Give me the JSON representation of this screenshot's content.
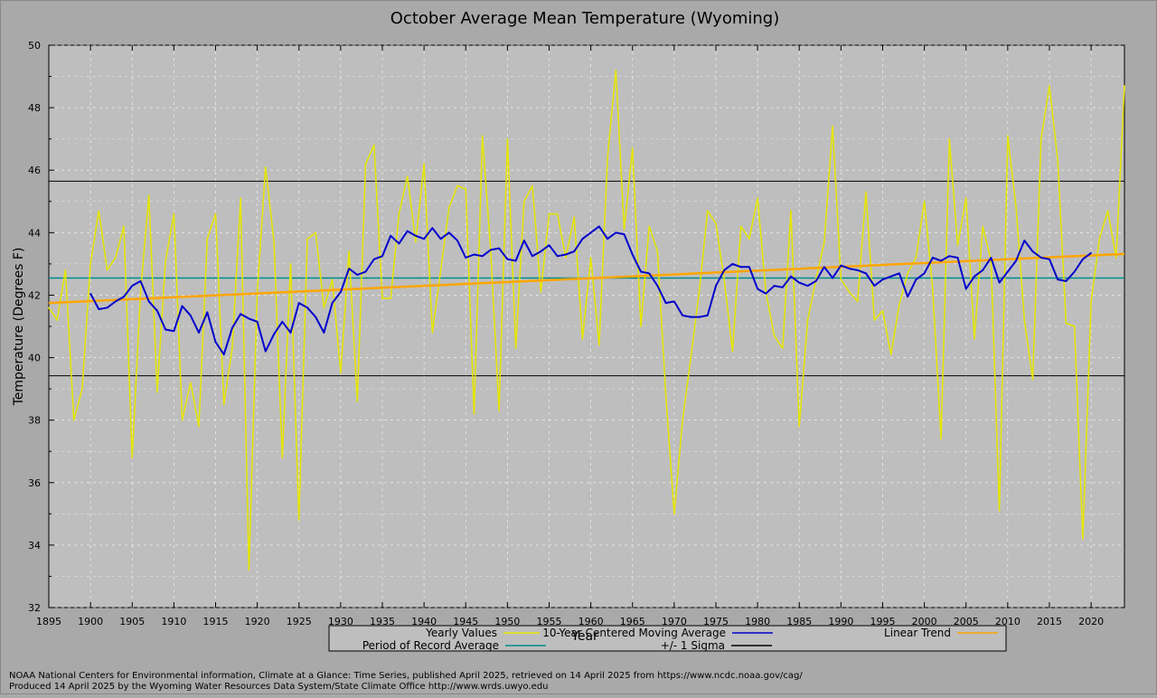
{
  "chart_data": {
    "type": "line",
    "title": "October Average Mean Temperature (Wyoming)",
    "xlabel": "Year",
    "ylabel": "Temperature (Degrees F)",
    "xlim": [
      1895,
      2024
    ],
    "ylim": [
      32,
      50
    ],
    "x_ticks": [
      1895,
      1900,
      1905,
      1910,
      1915,
      1920,
      1925,
      1930,
      1935,
      1940,
      1945,
      1950,
      1955,
      1960,
      1965,
      1970,
      1975,
      1980,
      1985,
      1990,
      1995,
      2000,
      2005,
      2010,
      2015,
      2020
    ],
    "y_ticks": [
      32,
      34,
      36,
      38,
      40,
      42,
      44,
      46,
      48,
      50
    ],
    "grid": true,
    "legend_position": "bottom",
    "legend": [
      {
        "label": "Yearly Values",
        "color": "#e6e600"
      },
      {
        "label": "10-Year Centered Moving Average",
        "color": "#0000cc"
      },
      {
        "label": "Linear Trend",
        "color": "#ffa500"
      },
      {
        "label": "Period of Record Average",
        "color": "#008b8b"
      },
      {
        "label": "+/- 1 Sigma",
        "color": "#000000"
      }
    ],
    "series": [
      {
        "name": "Yearly Values",
        "color": "#e6e600",
        "x_start": 1895,
        "values": [
          41.6,
          41.2,
          42.8,
          38.0,
          39.0,
          43.0,
          44.7,
          42.8,
          43.2,
          44.2,
          36.8,
          42.1,
          45.2,
          38.9,
          43.1,
          44.6,
          38.0,
          39.2,
          37.8,
          43.8,
          44.6,
          38.5,
          40.3,
          45.1,
          33.2,
          42.1,
          46.1,
          43.7,
          36.8,
          43.0,
          34.8,
          43.8,
          44.0,
          41.6,
          42.5,
          39.5,
          43.4,
          38.6,
          46.2,
          46.8,
          41.9,
          41.9,
          44.6,
          45.8,
          43.7,
          46.2,
          40.8,
          42.8,
          44.8,
          45.5,
          45.4,
          38.2,
          47.1,
          43.4,
          38.3,
          47.0,
          40.3,
          45.0,
          45.5,
          42.1,
          44.6,
          44.6,
          43.2,
          44.5,
          40.6,
          43.2,
          40.4,
          46.4,
          49.2,
          44.1,
          46.7,
          41.0,
          44.2,
          43.4,
          38.8,
          35.0,
          38.0,
          40.0,
          42.1,
          44.7,
          44.3,
          42.5,
          40.2,
          44.2,
          43.8,
          45.1,
          42.1,
          40.7,
          40.3,
          44.7,
          37.8,
          41.2,
          42.5,
          43.7,
          47.4,
          42.5,
          42.1,
          41.8,
          45.3,
          41.2,
          41.5,
          40.1,
          41.7,
          42.7,
          43.2,
          45.0,
          42.2,
          37.4,
          47.0,
          43.6,
          45.1,
          40.6,
          44.2,
          43.1,
          35.1,
          47.1,
          44.8,
          41.2,
          39.3,
          47.0,
          48.7,
          46.3,
          41.1,
          41.0,
          34.2,
          41.8,
          43.8,
          44.7,
          43.2,
          48.7
        ]
      },
      {
        "name": "10-Year Centered Moving Average",
        "color": "#0000cc",
        "x_start": 1900,
        "values": [
          42.05,
          41.55,
          41.6,
          41.8,
          41.95,
          42.3,
          42.45,
          41.8,
          41.5,
          40.9,
          40.85,
          41.65,
          41.35,
          40.8,
          41.45,
          40.5,
          40.1,
          40.95,
          41.4,
          41.25,
          41.15,
          40.2,
          40.75,
          41.15,
          40.8,
          41.75,
          41.6,
          41.3,
          40.8,
          41.75,
          42.1,
          42.85,
          42.65,
          42.75,
          43.15,
          43.25,
          43.9,
          43.65,
          44.05,
          43.9,
          43.8,
          44.15,
          43.8,
          44.0,
          43.75,
          43.2,
          43.3,
          43.25,
          43.45,
          43.5,
          43.15,
          43.1,
          43.75,
          43.25,
          43.4,
          43.6,
          43.25,
          43.3,
          43.4,
          43.8,
          44.0,
          44.2,
          43.8,
          44.0,
          43.95,
          43.3,
          42.75,
          42.7,
          42.3,
          41.75,
          41.8,
          41.35,
          41.3,
          41.3,
          41.35,
          42.3,
          42.8,
          43.0,
          42.9,
          42.9,
          42.2,
          42.05,
          42.3,
          42.25,
          42.6,
          42.4,
          42.3,
          42.45,
          42.9,
          42.55,
          42.95,
          42.85,
          42.8,
          42.7,
          42.3,
          42.5,
          42.6,
          42.7,
          41.95,
          42.5,
          42.7,
          43.2,
          43.1,
          43.25,
          43.2,
          42.2,
          42.6,
          42.8,
          43.2,
          42.4,
          42.75,
          43.1,
          43.75,
          43.4,
          43.2,
          43.15,
          42.5,
          42.45,
          42.75,
          43.15,
          43.35
        ]
      },
      {
        "name": "Linear Trend",
        "color": "#ffa500",
        "x": [
          1895,
          2024
        ],
        "values": [
          41.75,
          43.32
        ]
      },
      {
        "name": "Period of Record Average",
        "color": "#008b8b",
        "value": 42.55
      },
      {
        "name": "+/- 1 Sigma",
        "color": "#000000",
        "values": [
          45.65,
          39.42
        ]
      }
    ]
  },
  "credits": {
    "line1": "NOAA National Centers for Environmental information, Climate at a Glance: Time Series, published April 2025, retrieved on 14 April 2025 from https://www.ncdc.noaa.gov/cag/",
    "line2": "Produced 14 April 2025 by the Wyoming Water Resources Data System/State Climate Office http://www.wrds.uwyo.edu"
  }
}
